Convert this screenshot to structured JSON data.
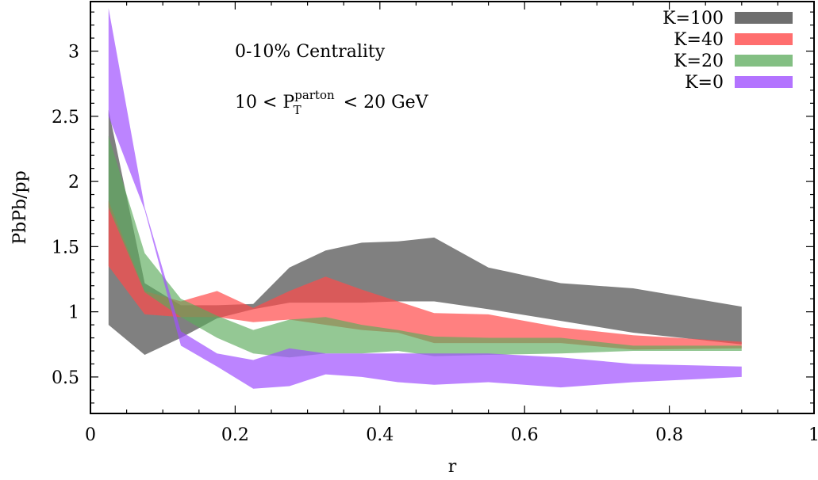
{
  "chart_data": {
    "type": "area",
    "xlabel": "r",
    "ylabel": "PbPb/pp",
    "xlim": [
      0,
      1
    ],
    "ylim": [
      0.22,
      3.38
    ],
    "xticks": [
      0,
      0.2,
      0.4,
      0.6,
      0.8,
      1
    ],
    "xtick_labels": [
      "0",
      "0.2",
      "0.4",
      "0.6",
      "0.8",
      "1"
    ],
    "yticks": [
      0.5,
      1,
      1.5,
      2,
      2.5,
      3
    ],
    "ytick_labels": [
      "0.5",
      "1",
      "1.5",
      "2",
      "2.5",
      "3"
    ],
    "grid": false,
    "legend_position": "top-right",
    "annotations": [
      {
        "text": "0-10% Centrality"
      },
      {
        "text": "10 < P",
        "sub": "T",
        "sup": "parton",
        "suffix": " < 20 GeV"
      }
    ],
    "x": [
      0.025,
      0.075,
      0.125,
      0.175,
      0.225,
      0.275,
      0.325,
      0.375,
      0.425,
      0.475,
      0.55,
      0.65,
      0.75,
      0.9
    ],
    "series": [
      {
        "name": "K=100",
        "color": "#555555",
        "opacity": 0.75,
        "lower": [
          0.9,
          0.67,
          0.8,
          0.95,
          1.02,
          1.07,
          1.07,
          1.07,
          1.08,
          1.08,
          1.02,
          0.93,
          0.84,
          0.75
        ],
        "upper": [
          2.55,
          1.22,
          1.05,
          1.05,
          1.06,
          1.34,
          1.47,
          1.53,
          1.54,
          1.57,
          1.34,
          1.22,
          1.18,
          1.04
        ]
      },
      {
        "name": "K=40",
        "color": "#ff4a4a",
        "opacity": 0.7,
        "lower": [
          1.35,
          0.98,
          0.96,
          0.96,
          0.92,
          0.94,
          0.9,
          0.86,
          0.84,
          0.76,
          0.76,
          0.76,
          0.71,
          0.72
        ],
        "upper": [
          1.85,
          1.16,
          1.08,
          1.16,
          1.03,
          1.16,
          1.27,
          1.17,
          1.08,
          0.99,
          0.98,
          0.88,
          0.82,
          0.77
        ]
      },
      {
        "name": "K=20",
        "color": "#5aaa5a",
        "opacity": 0.65,
        "lower": [
          1.8,
          1.15,
          0.96,
          0.8,
          0.68,
          0.65,
          0.68,
          0.68,
          0.7,
          0.66,
          0.67,
          0.68,
          0.7,
          0.7
        ],
        "upper": [
          2.35,
          1.45,
          1.1,
          0.97,
          0.86,
          0.94,
          0.96,
          0.9,
          0.86,
          0.81,
          0.8,
          0.8,
          0.74,
          0.74
        ]
      },
      {
        "name": "K=0",
        "color": "#a050ff",
        "opacity": 0.7,
        "lower": [
          2.5,
          1.78,
          0.74,
          0.58,
          0.41,
          0.43,
          0.52,
          0.5,
          0.46,
          0.44,
          0.46,
          0.42,
          0.46,
          0.5
        ],
        "upper": [
          3.33,
          1.8,
          0.85,
          0.68,
          0.63,
          0.72,
          0.68,
          0.68,
          0.68,
          0.68,
          0.68,
          0.65,
          0.6,
          0.58
        ]
      }
    ]
  }
}
